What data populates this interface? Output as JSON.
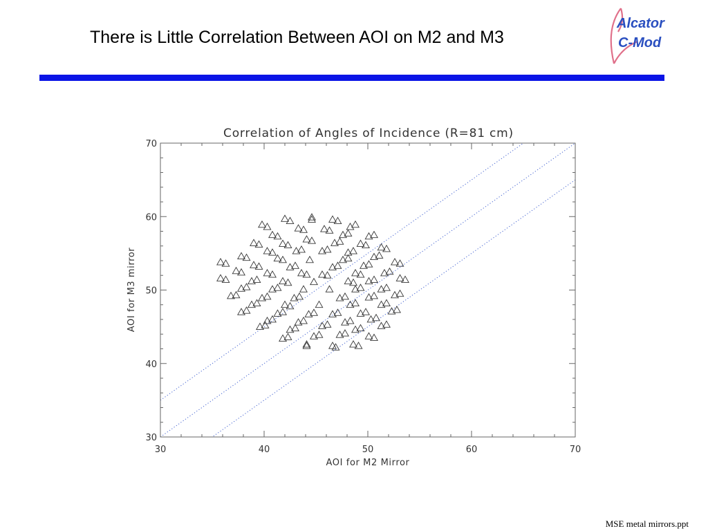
{
  "slide": {
    "title": "There is Little Correlation Between AOI on M2 and M3",
    "footer": "MSE metal mirrors.ppt",
    "logo": {
      "line1": "Alcator",
      "line2": "C-Mod",
      "text_color": "#2a4fc0",
      "ribbon_color": "#e0708a"
    },
    "bar_color": "#0a14e6"
  },
  "chart_data": {
    "type": "scatter",
    "title": "Correlation of Angles of Incidence (R=81 cm)",
    "xlabel": "AOI for M2 Mirror",
    "ylabel": "AOI for M3 mirror",
    "xlim": [
      30,
      70
    ],
    "ylim": [
      30,
      70
    ],
    "xticks": [
      "30",
      "40",
      "50",
      "60",
      "70"
    ],
    "yticks": [
      "30",
      "40",
      "50",
      "60",
      "70"
    ],
    "marker": "open-triangle",
    "marker_color": "#333333",
    "reference_line_color": "#4060d0",
    "reference_lines": [
      {
        "style": "dotted",
        "slope": 1,
        "intercept": 5
      },
      {
        "style": "dotted",
        "slope": 1,
        "intercept": 0
      },
      {
        "style": "dotted",
        "slope": 1,
        "intercept": -5
      }
    ],
    "points": [
      [
        35.8,
        53.8
      ],
      [
        36.3,
        53.6
      ],
      [
        35.8,
        51.6
      ],
      [
        36.3,
        51.4
      ],
      [
        36.8,
        49.2
      ],
      [
        37.3,
        49.3
      ],
      [
        37.3,
        52.6
      ],
      [
        37.8,
        52.4
      ],
      [
        37.8,
        54.6
      ],
      [
        38.3,
        54.4
      ],
      [
        37.8,
        50.2
      ],
      [
        38.3,
        50.4
      ],
      [
        37.8,
        47.0
      ],
      [
        38.3,
        47.2
      ],
      [
        38.8,
        48.0
      ],
      [
        39.3,
        48.2
      ],
      [
        38.8,
        51.2
      ],
      [
        39.3,
        51.4
      ],
      [
        39.0,
        53.4
      ],
      [
        39.5,
        53.2
      ],
      [
        39.0,
        56.4
      ],
      [
        39.5,
        56.2
      ],
      [
        39.6,
        45.0
      ],
      [
        40.1,
        45.2
      ],
      [
        39.8,
        48.9
      ],
      [
        40.3,
        49.1
      ],
      [
        39.8,
        58.9
      ],
      [
        40.3,
        58.6
      ],
      [
        40.3,
        52.3
      ],
      [
        40.8,
        52.1
      ],
      [
        40.3,
        55.3
      ],
      [
        40.8,
        55.1
      ],
      [
        40.3,
        45.8
      ],
      [
        40.8,
        46.0
      ],
      [
        40.8,
        50.1
      ],
      [
        41.3,
        50.3
      ],
      [
        40.8,
        57.5
      ],
      [
        41.3,
        57.3
      ],
      [
        41.3,
        54.3
      ],
      [
        41.8,
        54.1
      ],
      [
        41.3,
        46.8
      ],
      [
        41.8,
        47.0
      ],
      [
        41.8,
        43.4
      ],
      [
        42.3,
        43.6
      ],
      [
        41.8,
        51.2
      ],
      [
        42.3,
        51.0
      ],
      [
        41.8,
        56.3
      ],
      [
        42.3,
        56.1
      ],
      [
        42.0,
        59.7
      ],
      [
        42.5,
        59.4
      ],
      [
        42.0,
        48.0
      ],
      [
        42.5,
        47.8
      ],
      [
        42.5,
        53.1
      ],
      [
        43.0,
        53.3
      ],
      [
        42.5,
        44.6
      ],
      [
        43.0,
        44.8
      ],
      [
        42.9,
        48.9
      ],
      [
        43.4,
        49.1
      ],
      [
        43.1,
        55.3
      ],
      [
        43.6,
        55.5
      ],
      [
        43.3,
        58.4
      ],
      [
        43.8,
        58.2
      ],
      [
        43.3,
        45.6
      ],
      [
        43.8,
        45.8
      ],
      [
        43.6,
        52.3
      ],
      [
        44.1,
        52.1
      ],
      [
        43.8,
        50.1
      ],
      [
        44.1,
        42.6
      ],
      [
        44.1,
        42.4
      ],
      [
        44.3,
        46.7
      ],
      [
        44.8,
        46.9
      ],
      [
        44.1,
        56.9
      ],
      [
        44.6,
        56.7
      ],
      [
        44.4,
        54.1
      ],
      [
        44.6,
        59.9
      ],
      [
        44.6,
        59.6
      ],
      [
        44.8,
        43.7
      ],
      [
        45.3,
        43.9
      ],
      [
        44.8,
        51.1
      ],
      [
        45.3,
        48.0
      ],
      [
        45.6,
        45.1
      ],
      [
        46.1,
        45.3
      ],
      [
        45.6,
        52.1
      ],
      [
        46.1,
        52.0
      ],
      [
        45.6,
        55.3
      ],
      [
        46.1,
        55.5
      ],
      [
        45.8,
        58.3
      ],
      [
        46.3,
        58.1
      ],
      [
        46.3,
        50.1
      ],
      [
        46.6,
        46.7
      ],
      [
        47.1,
        46.9
      ],
      [
        46.6,
        53.1
      ],
      [
        47.1,
        53.3
      ],
      [
        46.8,
        56.4
      ],
      [
        47.3,
        56.6
      ],
      [
        46.6,
        59.6
      ],
      [
        47.1,
        59.4
      ],
      [
        46.6,
        42.4
      ],
      [
        46.9,
        42.2
      ],
      [
        47.3,
        43.9
      ],
      [
        47.8,
        44.1
      ],
      [
        47.3,
        48.9
      ],
      [
        47.8,
        49.1
      ],
      [
        47.6,
        54.1
      ],
      [
        48.1,
        54.3
      ],
      [
        47.6,
        57.5
      ],
      [
        48.1,
        57.7
      ],
      [
        47.8,
        45.6
      ],
      [
        48.3,
        45.8
      ],
      [
        48.1,
        51.2
      ],
      [
        48.6,
        51.0
      ],
      [
        48.1,
        55.1
      ],
      [
        48.6,
        55.3
      ],
      [
        48.3,
        48.0
      ],
      [
        48.8,
        48.2
      ],
      [
        48.3,
        58.6
      ],
      [
        48.8,
        58.9
      ],
      [
        48.6,
        42.6
      ],
      [
        49.1,
        42.4
      ],
      [
        48.8,
        44.6
      ],
      [
        49.3,
        44.8
      ],
      [
        48.8,
        50.1
      ],
      [
        49.3,
        50.3
      ],
      [
        48.8,
        52.3
      ],
      [
        49.3,
        52.1
      ],
      [
        49.3,
        46.8
      ],
      [
        49.8,
        47.0
      ],
      [
        49.3,
        56.3
      ],
      [
        49.8,
        56.1
      ],
      [
        49.6,
        53.3
      ],
      [
        50.1,
        53.5
      ],
      [
        50.1,
        43.7
      ],
      [
        50.6,
        43.5
      ],
      [
        50.1,
        49.0
      ],
      [
        50.6,
        49.2
      ],
      [
        50.1,
        51.2
      ],
      [
        50.6,
        51.4
      ],
      [
        50.1,
        57.3
      ],
      [
        50.6,
        57.5
      ],
      [
        50.3,
        46.0
      ],
      [
        50.8,
        46.2
      ],
      [
        50.6,
        54.5
      ],
      [
        51.1,
        54.7
      ],
      [
        51.3,
        48.0
      ],
      [
        51.8,
        48.2
      ],
      [
        51.3,
        50.1
      ],
      [
        51.8,
        50.3
      ],
      [
        51.3,
        45.1
      ],
      [
        51.8,
        45.3
      ],
      [
        51.3,
        55.8
      ],
      [
        51.8,
        55.6
      ],
      [
        51.6,
        52.3
      ],
      [
        52.1,
        52.5
      ],
      [
        52.3,
        47.1
      ],
      [
        52.8,
        47.3
      ],
      [
        52.6,
        53.8
      ],
      [
        53.1,
        53.6
      ],
      [
        52.6,
        49.3
      ],
      [
        53.1,
        49.5
      ],
      [
        53.1,
        51.6
      ],
      [
        53.6,
        51.4
      ]
    ]
  }
}
